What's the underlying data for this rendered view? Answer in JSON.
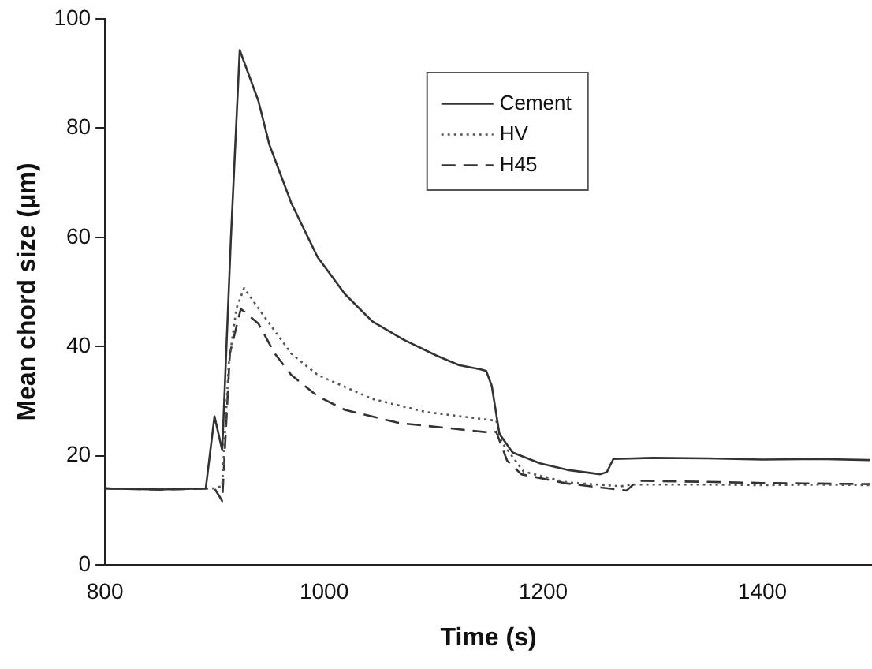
{
  "chart_data": {
    "type": "line",
    "xlabel": "Time (s)",
    "ylabel": "Mean chord size (μm)",
    "xlim": [
      800,
      1500
    ],
    "xticks": [
      800,
      1000,
      1200,
      1400
    ],
    "ylim": [
      0,
      100
    ],
    "yticks": [
      0,
      20,
      40,
      60,
      80,
      100
    ],
    "grid": false,
    "legend": "top right",
    "marker": "none",
    "series": [
      {
        "name": "Cement",
        "color": "#333333",
        "line_style": "solid",
        "x": [
          800,
          850,
          892,
          900,
          907,
          915,
          923,
          940,
          950,
          970,
          994,
          1019,
          1044,
          1073,
          1103,
          1123,
          1143,
          1148,
          1153,
          1160,
          1172,
          1197,
          1222,
          1252,
          1258,
          1264,
          1300,
          1350,
          1400,
          1450,
          1498
        ],
        "values": [
          14,
          13.8,
          14,
          27.2,
          21,
          60,
          94.3,
          85,
          77,
          66.3,
          56.4,
          49.6,
          44.6,
          41.2,
          38.3,
          36.6,
          35.8,
          35.5,
          32.8,
          24,
          20.6,
          18.6,
          17.4,
          16.6,
          17,
          19.4,
          19.6,
          19.5,
          19.3,
          19.4,
          19.2
        ]
      },
      {
        "name": "HV",
        "color": "#555555",
        "line_style": "dotted",
        "x": [
          800,
          850,
          900,
          907,
          913,
          920,
          927,
          945,
          970,
          994,
          1044,
          1093,
          1153,
          1157,
          1162,
          1182,
          1222,
          1271,
          1280,
          1350,
          1400,
          1450,
          1498
        ],
        "values": [
          14,
          13.9,
          14,
          14.5,
          36.8,
          47,
          50.7,
          45.6,
          38.7,
          34.8,
          30.4,
          28,
          26.5,
          26.5,
          22.5,
          17.1,
          15.1,
          14.4,
          14.7,
          14.7,
          14.6,
          14.7,
          14.6
        ]
      },
      {
        "name": "H45",
        "color": "#333333",
        "line_style": "dashed",
        "x": [
          800,
          850,
          900,
          907,
          914,
          924,
          940,
          955,
          970,
          994,
          1019,
          1068,
          1153,
          1157,
          1167,
          1180,
          1222,
          1276,
          1286,
          1350,
          1400,
          1450,
          1498
        ],
        "values": [
          14,
          13.8,
          14,
          11.7,
          38.7,
          46.9,
          44.2,
          38.7,
          34.8,
          30.9,
          28.4,
          26,
          24.2,
          24.4,
          19.1,
          16.6,
          14.9,
          13.6,
          15.4,
          15.2,
          15,
          14.9,
          14.8
        ]
      }
    ]
  }
}
